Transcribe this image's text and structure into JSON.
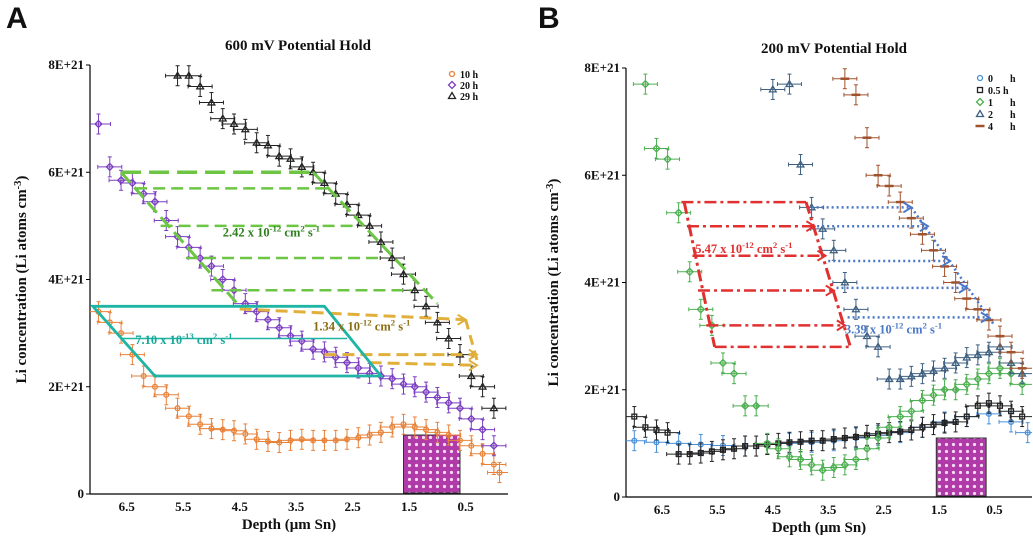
{
  "panels": [
    {
      "letter": "A",
      "title": "600 mV Potential Hold",
      "xlabel": "Depth (μm Sn)",
      "ylabel_main": "Li concentration (Li atoms cm",
      "ylabel_sup": "-3",
      "ylabel_end": ")",
      "yticks": [
        "0",
        "2E+21",
        "4E+21",
        "6E+21",
        "8E+21"
      ],
      "xticks": [
        "6.5",
        "5.5",
        "4.5",
        "3.5",
        "2.5",
        "1.5",
        "0.5"
      ],
      "annotations": [
        {
          "text": "2.42 x 10",
          "exp": "-12",
          "unit": " cm",
          "unit_exp": "2",
          "tail": " s",
          "tail_exp": "-1",
          "color": "#2e7d1e"
        },
        {
          "text": "1.34 x 10",
          "exp": "-12",
          "unit": " cm",
          "unit_exp": "2",
          "tail": " s",
          "tail_exp": "-1",
          "color": "#8a6d12"
        },
        {
          "text": "7.10 x 10",
          "exp": "-13",
          "unit": " cm",
          "unit_exp": "2",
          "tail": " s",
          "tail_exp": "-1",
          "color": "#17a89a"
        }
      ],
      "legend": [
        {
          "label": "10 h",
          "marker": "circle",
          "color": "#e8823a"
        },
        {
          "label": "20 h",
          "marker": "diamond",
          "color": "#7b3fc0"
        },
        {
          "label": "29 h",
          "marker": "triangle",
          "color": "#222222"
        }
      ]
    },
    {
      "letter": "B",
      "title": "200 mV Potential Hold",
      "xlabel": "Depth (μm Sn)",
      "ylabel_main": "Li concentration (Li atoms cm",
      "ylabel_sup": "-3",
      "ylabel_end": ")",
      "yticks": [
        "0",
        "2E+21",
        "4E+21",
        "6E+21",
        "8E+21"
      ],
      "xticks": [
        "6.5",
        "5.5",
        "4.5",
        "3.5",
        "2.5",
        "1.5",
        "0.5"
      ],
      "annotations": [
        {
          "text": "5.47 x 10",
          "exp": "-12",
          "unit": " cm",
          "unit_exp": "2",
          "tail": " s",
          "tail_exp": "-1",
          "color": "#e03030"
        },
        {
          "text": "3.39 x 10",
          "exp": "-12",
          "unit": " cm",
          "unit_exp": "2",
          "tail": " s",
          "tail_exp": "-1",
          "color": "#4a78c8"
        }
      ],
      "legend": [
        {
          "label": "0",
          "unit": "h",
          "marker": "circle",
          "color": "#4a90d9"
        },
        {
          "label": "0.5 h",
          "unit": "",
          "marker": "square",
          "color": "#222222"
        },
        {
          "label": "1",
          "unit": "h",
          "marker": "diamond",
          "color": "#4caf50"
        },
        {
          "label": "2",
          "unit": "h",
          "marker": "triangle",
          "color": "#3e5f80"
        },
        {
          "label": "4",
          "unit": "h",
          "marker": "dash",
          "color": "#a0522d"
        }
      ]
    }
  ],
  "chart_data": [
    {
      "type": "scatter",
      "title": "600 mV Potential Hold",
      "xlabel": "Depth (μm Sn)",
      "ylabel": "Li concentration (Li atoms cm-3)",
      "x_reversed": true,
      "xlim": [
        7.15,
        -0.25
      ],
      "ylim": [
        0,
        8e+21
      ],
      "series": [
        {
          "name": "10 h",
          "color": "#e8823a",
          "marker": "circle",
          "x": [
            7.0,
            6.8,
            6.6,
            6.4,
            6.2,
            6.0,
            5.8,
            5.6,
            5.4,
            5.2,
            5.0,
            4.8,
            4.6,
            4.4,
            4.2,
            4.0,
            3.8,
            3.6,
            3.4,
            3.2,
            3.0,
            2.8,
            2.6,
            2.4,
            2.2,
            2.0,
            1.8,
            1.6,
            1.4,
            1.2,
            1.0,
            0.8,
            0.6,
            0.4,
            0.2,
            0.0,
            -0.1
          ],
          "y": [
            3.4e+21,
            3.2e+21,
            3e+21,
            2.6e+21,
            2.2e+21,
            2e+21,
            1.85e+21,
            1.6e+21,
            1.45e+21,
            1.3e+21,
            1.22e+21,
            1.2e+21,
            1.18e+21,
            1.12e+21,
            1.02e+21,
            9.8e+20,
            9.6e+20,
            1e+21,
            1.02e+21,
            1e+21,
            1e+21,
            1e+21,
            1.02e+21,
            1.05e+21,
            1.1e+21,
            1.15e+21,
            1.25e+21,
            1.3e+21,
            1.25e+21,
            1.2e+21,
            1.15e+21,
            1.1e+21,
            1e+21,
            9e+20,
            7.5e+20,
            5.5e+20,
            4e+20
          ]
        },
        {
          "name": "20 h",
          "color": "#7b3fc0",
          "marker": "diamond",
          "x": [
            7.0,
            6.8,
            6.6,
            6.4,
            6.2,
            6.0,
            5.8,
            5.6,
            5.4,
            5.2,
            5.0,
            4.8,
            4.6,
            4.4,
            4.2,
            4.0,
            3.8,
            3.6,
            3.4,
            3.2,
            3.0,
            2.8,
            2.6,
            2.4,
            2.2,
            2.0,
            1.8,
            1.6,
            1.4,
            1.2,
            1.0,
            0.8,
            0.6,
            0.4,
            0.2,
            0.0
          ],
          "y": [
            6.9e+21,
            6.1e+21,
            5.85e+21,
            5.8e+21,
            5.6e+21,
            5.45e+21,
            5.1e+21,
            4.8e+21,
            4.6e+21,
            4.4e+21,
            4.25e+21,
            4e+21,
            3.8e+21,
            3.55e+21,
            3.4e+21,
            3.25e+21,
            3.1e+21,
            2.95e+21,
            2.85e+21,
            2.7e+21,
            2.65e+21,
            2.55e+21,
            2.45e+21,
            2.35e+21,
            2.25e+21,
            2.2e+21,
            2.15e+21,
            2.05e+21,
            2e+21,
            1.9e+21,
            1.8e+21,
            1.7e+21,
            1.6e+21,
            1.4e+21,
            1.2e+21,
            9e+20
          ]
        },
        {
          "name": "29 h",
          "color": "#222222",
          "marker": "triangle",
          "x": [
            5.6,
            5.4,
            5.2,
            5.0,
            4.8,
            4.6,
            4.4,
            4.2,
            4.0,
            3.8,
            3.6,
            3.4,
            3.2,
            3.0,
            2.8,
            2.6,
            2.4,
            2.2,
            2.0,
            1.8,
            1.6,
            1.4,
            1.2,
            1.0,
            0.8,
            0.6,
            0.4,
            0.2,
            0.0
          ],
          "y": [
            7.8e+21,
            7.8e+21,
            7.6e+21,
            7.3e+21,
            7e+21,
            6.9e+21,
            6.8e+21,
            6.55e+21,
            6.5e+21,
            6.3e+21,
            6.25e+21,
            6.1e+21,
            6e+21,
            5.8e+21,
            5.6e+21,
            5.4e+21,
            5.2e+21,
            5e+21,
            4.7e+21,
            4.4e+21,
            4.1e+21,
            3.8e+21,
            3.5e+21,
            3.2e+21,
            2.9e+21,
            2.6e+21,
            2.2e+21,
            2e+21,
            1.6e+21
          ]
        }
      ]
    },
    {
      "type": "scatter",
      "title": "200 mV Potential Hold",
      "xlabel": "Depth (μm Sn)",
      "ylabel": "Li concentration (Li atoms cm-3)",
      "x_reversed": true,
      "xlim": [
        7.15,
        -0.25
      ],
      "ylim": [
        0,
        8e+21
      ],
      "series": [
        {
          "name": "0 h",
          "color": "#4a90d9",
          "marker": "circle",
          "x": [
            7.0,
            6.6,
            6.2,
            5.8,
            5.4,
            5.0,
            4.6,
            4.2,
            3.8,
            3.4,
            3.0,
            2.6,
            2.2,
            1.8,
            1.4,
            1.0,
            0.6,
            0.2,
            -0.1
          ],
          "y": [
            1.05e+21,
            1.02e+21,
            1e+21,
            9.8e+20,
            9.6e+20,
            9.5e+20,
            9.8e+20,
            1e+21,
            1.02e+21,
            1.05e+21,
            1.1e+21,
            1.15e+21,
            1.2e+21,
            1.3e+21,
            1.4e+21,
            1.5e+21,
            1.55e+21,
            1.4e+21,
            1.2e+21
          ]
        },
        {
          "name": "0.5 h",
          "color": "#222222",
          "marker": "square",
          "x": [
            7.0,
            6.8,
            6.6,
            6.4,
            6.2,
            6.0,
            5.8,
            5.6,
            5.4,
            5.2,
            5.0,
            4.8,
            4.6,
            4.4,
            4.2,
            4.0,
            3.8,
            3.6,
            3.4,
            3.2,
            3.0,
            2.8,
            2.6,
            2.4,
            2.2,
            2.0,
            1.8,
            1.6,
            1.4,
            1.2,
            1.0,
            0.8,
            0.6,
            0.4,
            0.2,
            0.0
          ],
          "y": [
            1.5e+21,
            1.3e+21,
            1.25e+21,
            1.2e+21,
            8e+20,
            8e+20,
            8.2e+20,
            8.5e+20,
            8.8e+20,
            9e+20,
            9.5e+20,
            9.5e+20,
            9.8e+20,
            1e+21,
            1.02e+21,
            1.03e+21,
            1.05e+21,
            1.05e+21,
            1.08e+21,
            1.1e+21,
            1.12e+21,
            1.15e+21,
            1.18e+21,
            1.2e+21,
            1.22e+21,
            1.25e+21,
            1.3e+21,
            1.35e+21,
            1.38e+21,
            1.4e+21,
            1.5e+21,
            1.7e+21,
            1.75e+21,
            1.7e+21,
            1.6e+21,
            1.5e+21
          ]
        },
        {
          "name": "1 h",
          "color": "#4caf50",
          "marker": "diamond",
          "x": [
            6.8,
            6.6,
            6.4,
            6.2,
            6.0,
            5.8,
            5.6,
            5.4,
            5.2,
            5.0,
            4.8,
            4.6,
            4.4,
            4.2,
            4.0,
            3.8,
            3.6,
            3.4,
            3.2,
            3.0,
            2.8,
            2.6,
            2.4,
            2.2,
            2.0,
            1.8,
            1.6,
            1.4,
            1.2,
            1.0,
            0.8,
            0.6,
            0.4,
            0.2,
            0.0
          ],
          "y": [
            7.7e+21,
            6.5e+21,
            6.3e+21,
            5.3e+21,
            4.2e+21,
            3.5e+21,
            3.2e+21,
            2.5e+21,
            2.3e+21,
            1.7e+21,
            1.7e+21,
            1e+21,
            9e+20,
            7.5e+20,
            7e+20,
            6e+20,
            5e+20,
            5.5e+20,
            6e+20,
            7e+20,
            9e+20,
            1.1e+21,
            1.3e+21,
            1.5e+21,
            1.6e+21,
            1.8e+21,
            1.9e+21,
            2e+21,
            2e+21,
            2.1e+21,
            2.2e+21,
            2.3e+21,
            2.4e+21,
            2.3e+21,
            2.1e+21
          ]
        },
        {
          "name": "2 h",
          "color": "#3e5f80",
          "marker": "triangle",
          "x": [
            4.5,
            4.2,
            4.0,
            3.8,
            3.6,
            3.4,
            3.2,
            3.0,
            2.8,
            2.6,
            2.4,
            2.2,
            2.0,
            1.8,
            1.6,
            1.4,
            1.2,
            1.0,
            0.8,
            0.6,
            0.4,
            0.2,
            0.0
          ],
          "y": [
            7.6e+21,
            7.7e+21,
            6.2e+21,
            5.4e+21,
            5e+21,
            4.6e+21,
            4e+21,
            3.5e+21,
            3e+21,
            2.8e+21,
            2.2e+21,
            2.2e+21,
            2.25e+21,
            2.3e+21,
            2.35e+21,
            2.4e+21,
            2.5e+21,
            2.6e+21,
            2.65e+21,
            2.7e+21,
            2.8e+21,
            2.5e+21,
            2.3e+21
          ]
        },
        {
          "name": "4 h",
          "color": "#a0522d",
          "marker": "dash",
          "x": [
            3.2,
            3.0,
            2.8,
            2.6,
            2.4,
            2.2,
            2.0,
            1.8,
            1.6,
            1.4,
            1.2,
            1.0,
            0.8,
            0.6,
            0.4,
            0.2,
            0.0
          ],
          "y": [
            7.8e+21,
            7.5e+21,
            6.7e+21,
            6e+21,
            5.8e+21,
            5.5e+21,
            5.2e+21,
            4.9e+21,
            4.6e+21,
            4.3e+21,
            4e+21,
            3.7e+21,
            3.5e+21,
            3.3e+21,
            3e+21,
            2.7e+21,
            2.4e+21
          ]
        }
      ]
    }
  ]
}
